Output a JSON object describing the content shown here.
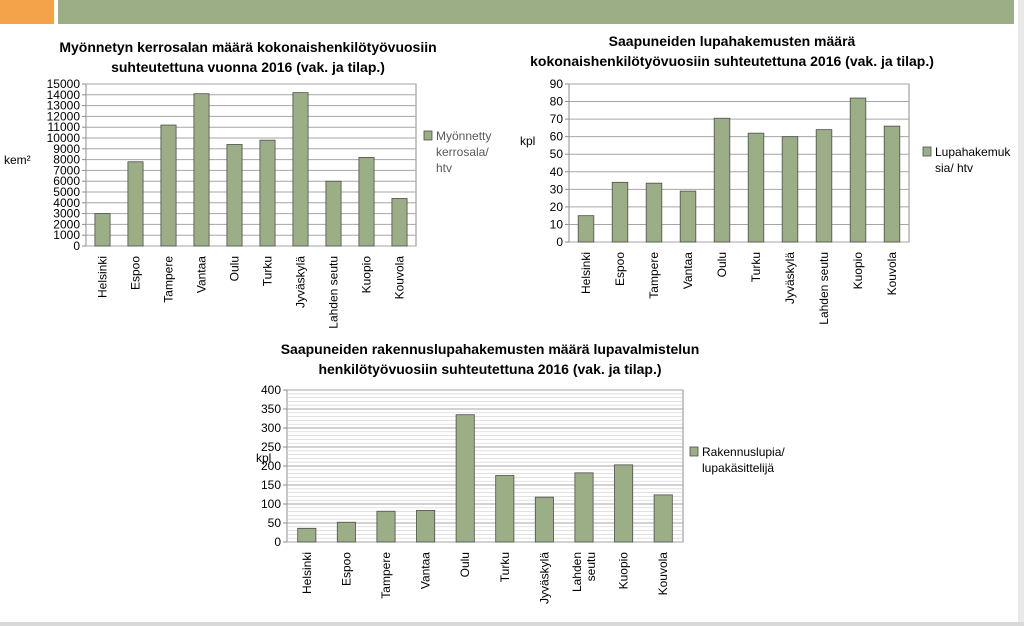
{
  "chart_data": [
    {
      "type": "bar",
      "title": [
        "Myönnetyn kerrosalan määrä kokonaishenkilötyövuosiin",
        "suhteutettuna vuonna 2016 (vak. ja tilap.)"
      ],
      "ylabel": "kem²",
      "categories": [
        "Helsinki",
        "Espoo",
        "Tampere",
        "Vantaa",
        "Oulu",
        "Turku",
        "Jyväskylä",
        "Lahden seutu",
        "Kuopio",
        "Kouvola"
      ],
      "series": [
        {
          "name": [
            "Myönnetty",
            "kerrosala/",
            "htv"
          ],
          "values": [
            3000,
            7800,
            11200,
            14100,
            9400,
            9800,
            14200,
            6000,
            8200,
            4400
          ],
          "color": "#9bae86"
        }
      ],
      "ylim": [
        0,
        15000
      ],
      "yticks": [
        0,
        1000,
        2000,
        3000,
        4000,
        5000,
        6000,
        7000,
        8000,
        9000,
        10000,
        11000,
        12000,
        13000,
        14000,
        15000
      ],
      "grid": true,
      "legend": "right"
    },
    {
      "type": "bar",
      "title": [
        "Saapuneiden lupahakemusten määrä",
        "kokonaishenkilötyövuosiin suhteutettuna 2016 (vak. ja tilap.)"
      ],
      "ylabel": "kpl",
      "categories": [
        "Helsinki",
        "Espoo",
        "Tampere",
        "Vantaa",
        "Oulu",
        "Turku",
        "Jyväskylä",
        "Lahden seutu",
        "Kuopio",
        "Kouvola"
      ],
      "series": [
        {
          "name": [
            "Lupahakemuk",
            "sia/ htv"
          ],
          "values": [
            15,
            34,
            33.5,
            29,
            70.5,
            62,
            60,
            64,
            82,
            66
          ],
          "color": "#9bae86"
        }
      ],
      "ylim": [
        0,
        90
      ],
      "yticks": [
        0,
        10,
        20,
        30,
        40,
        50,
        60,
        70,
        80,
        90
      ],
      "grid": true,
      "legend": "right"
    },
    {
      "type": "bar",
      "title": [
        "Saapuneiden rakennuslupahakemusten määrä lupavalmistelun",
        "henkilötyövuosiin suhteutettuna 2016 (vak. ja tilap.)"
      ],
      "ylabel": "kpl",
      "categories": [
        "Helsinki",
        "Espoo",
        "Tampere",
        "Vantaa",
        "Oulu",
        "Turku",
        "Jyväskylä",
        "Lahden\nseutu",
        "Kuopio",
        "Kouvola"
      ],
      "series": [
        {
          "name": [
            "Rakennuslupia/",
            "lupakäsittelijä"
          ],
          "values": [
            36,
            52,
            81,
            83,
            335,
            175,
            118,
            182,
            203,
            124
          ],
          "color": "#9bae86"
        }
      ],
      "ylim": [
        0,
        400
      ],
      "yticks": [
        0,
        50,
        100,
        150,
        200,
        250,
        300,
        350,
        400
      ],
      "grid": true,
      "legend": "right"
    }
  ]
}
